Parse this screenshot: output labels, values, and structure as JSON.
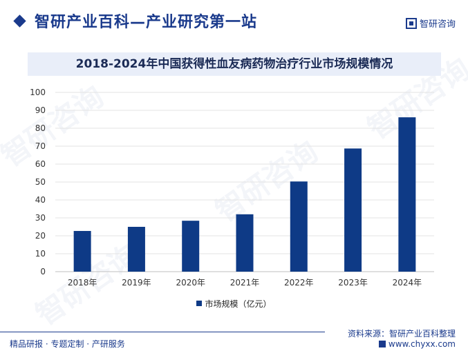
{
  "header": {
    "site_title": "智研产业百科—产业研究第一站",
    "brand_name": "智研咨询"
  },
  "footer": {
    "tagline": "精品研报 · 专题定制 · 产研服务",
    "source": "资料来源：智研产业百科整理",
    "url": "www.chyxx.com"
  },
  "watermark_text": "智研咨询",
  "colors": {
    "bar": "#0e3a86",
    "accent": "#1a3a8c",
    "title_bg": "#e9eef9"
  },
  "chart_data": {
    "type": "bar",
    "title": "2018-2024年中国获得性血友病药物治疗行业市场规模情况",
    "categories": [
      "2018年",
      "2019年",
      "2020年",
      "2021年",
      "2022年",
      "2023年",
      "2024年"
    ],
    "series": [
      {
        "name": "市场规模（亿元）",
        "values": [
          22.7,
          25.0,
          28.4,
          32.0,
          50.3,
          68.7,
          86.1
        ]
      }
    ],
    "ylim": [
      0,
      100
    ],
    "yticks": [
      0,
      10,
      20,
      30,
      40,
      50,
      60,
      70,
      80,
      90,
      100
    ],
    "grid": true,
    "legend": "bottom"
  }
}
